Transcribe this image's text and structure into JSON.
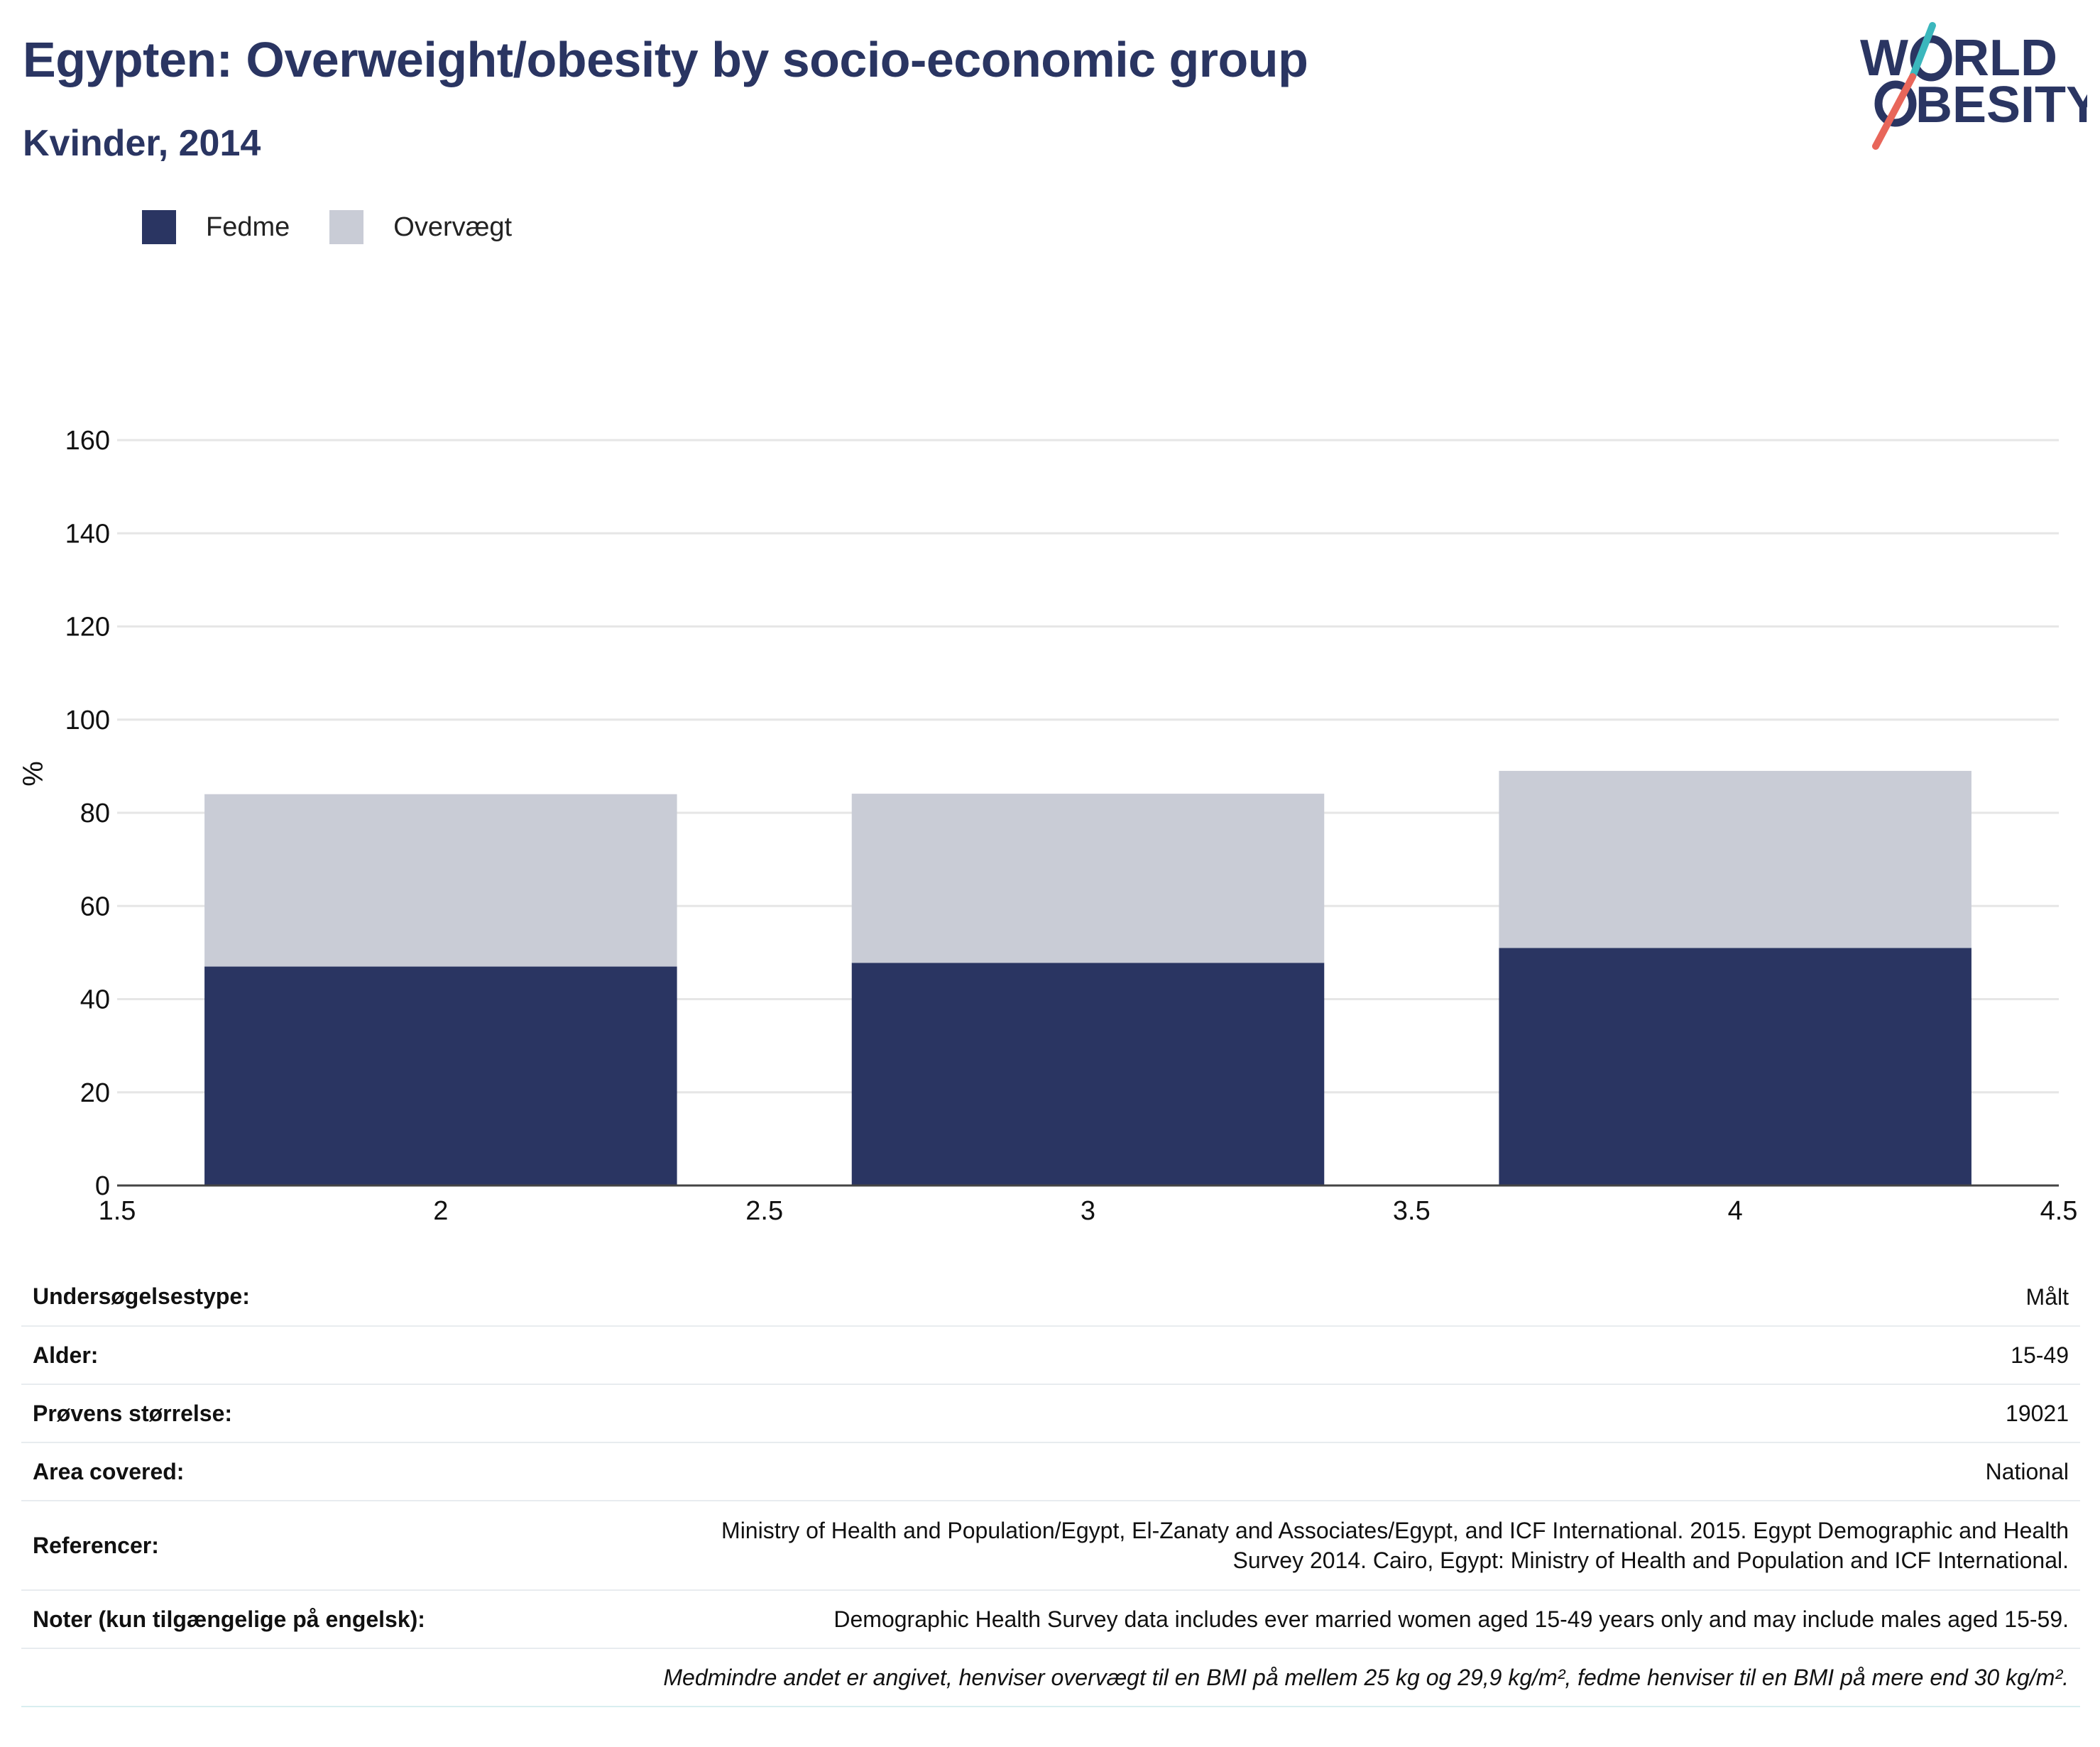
{
  "title": "Egypten: Overweight/obesity by socio-economic group",
  "subtitle": "Kvinder, 2014",
  "logo": {
    "line1_left": "W",
    "line1_right": "RLD",
    "line2": "BESITY",
    "teal": "#3bb7bd",
    "red": "#e8665a",
    "navy": "#2a3562"
  },
  "legend": [
    {
      "label": "Fedme",
      "color": "#2a3562"
    },
    {
      "label": "Overvægt",
      "color": "#c9ccd6"
    }
  ],
  "chart_data": {
    "type": "bar",
    "stacked": true,
    "x": [
      2,
      3,
      4
    ],
    "series": [
      {
        "name": "Fedme",
        "color": "#2a3562",
        "values": [
          47,
          47.8,
          51
        ]
      },
      {
        "name": "Overvægt",
        "color": "#c9ccd6",
        "values": [
          37,
          36.3,
          38
        ]
      }
    ],
    "ylabel": "%",
    "xlim": [
      1.5,
      4.5
    ],
    "ylim": [
      0,
      160
    ],
    "yticks": [
      0,
      20,
      40,
      60,
      80,
      100,
      120,
      140,
      160
    ],
    "xticks": [
      1.5,
      2,
      2.5,
      3,
      3.5,
      4,
      4.5
    ],
    "grid": true,
    "legend_position": "top-left"
  },
  "info": {
    "rows": [
      {
        "key": "Undersøgelsestype:",
        "value": "Målt"
      },
      {
        "key": "Alder:",
        "value": "15-49"
      },
      {
        "key": "Prøvens størrelse:",
        "value": "19021"
      },
      {
        "key": "Area covered:",
        "value": "National"
      },
      {
        "key": "Referencer:",
        "value_line1": "Ministry of Health and Population/Egypt, El-Zanaty and Associates/Egypt, and ICF International. 2015. Egypt Demographic and Health",
        "value_line2": "Survey 2014. Cairo, Egypt: Ministry of Health and Population and ICF International."
      },
      {
        "key": "Noter (kun tilgængelige på engelsk):",
        "value": "Demographic Health Survey data includes ever married women aged 15-49 years only and may include males aged 15-59."
      }
    ],
    "footnote": "Medmindre andet er angivet, henviser overvægt til en BMI på mellem 25 kg og 29,9 kg/m², fedme henviser til en BMI på mere end 30 kg/m²."
  }
}
